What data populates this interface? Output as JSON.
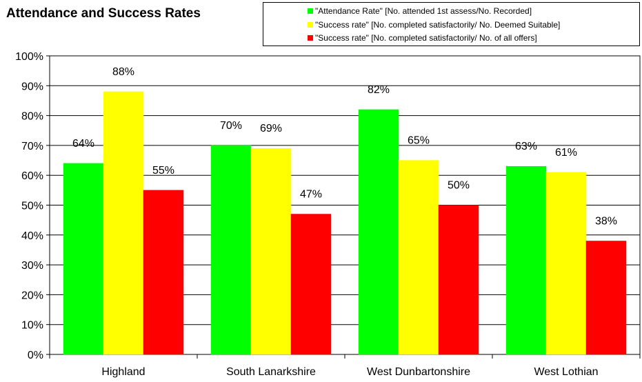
{
  "chart_data": {
    "type": "bar",
    "title": "Attendance and Success Rates",
    "categories": [
      "Highland",
      "South Lanarkshire",
      "West Dunbartonshire",
      "West Lothian"
    ],
    "series": [
      {
        "name": "\"Attendance Rate\" [No. attended 1st assess/No. Recorded]",
        "color": "#00ff00",
        "values": [
          64,
          70,
          82,
          63
        ]
      },
      {
        "name": "\"Success rate\" [No. completed satisfactorily/ No. Deemed Suitable]",
        "color": "#ffff00",
        "values": [
          88,
          69,
          65,
          61
        ]
      },
      {
        "name": "\"Success rate\" [No. completed satisfactorily/ No. of all offers]",
        "color": "#ff0000",
        "values": [
          55,
          47,
          50,
          38
        ]
      }
    ],
    "ylim": [
      0,
      100
    ],
    "yticks": [
      "0%",
      "10%",
      "20%",
      "30%",
      "40%",
      "50%",
      "60%",
      "70%",
      "80%",
      "90%",
      "100%"
    ],
    "value_suffix": "%",
    "grid": true,
    "legend_position": "top-right"
  }
}
